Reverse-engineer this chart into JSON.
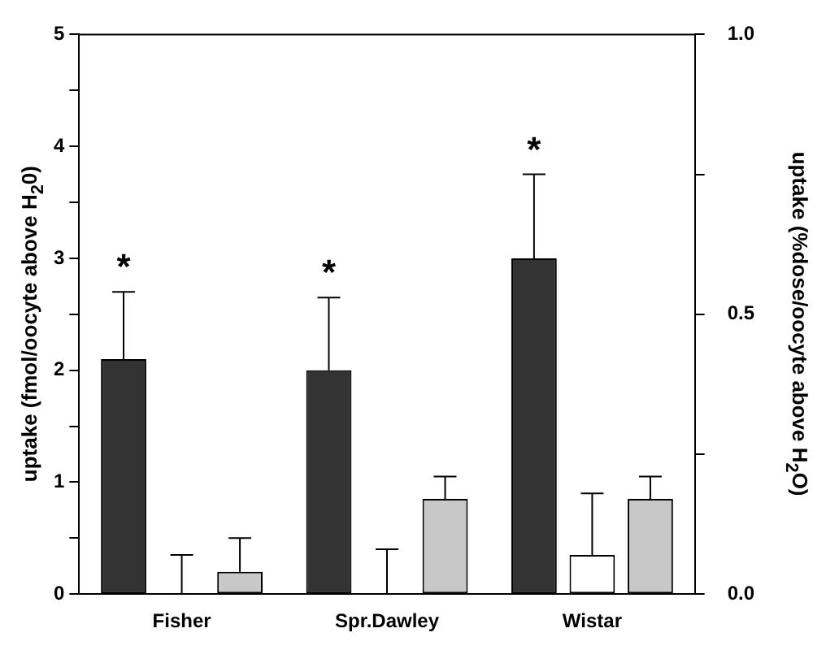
{
  "chart_data": {
    "type": "bar",
    "categories": [
      "Fisher",
      "Spr.Dawley",
      "Wistar"
    ],
    "series": [
      {
        "color": "#333333",
        "values": [
          2.1,
          2.0,
          3.0
        ],
        "errors": [
          [
            2.1,
            2.7
          ],
          [
            2.0,
            2.65
          ],
          [
            3.0,
            3.75
          ]
        ]
      },
      {
        "color": "#ffffff",
        "values": [
          0,
          0,
          0.35
        ],
        "errors": [
          [
            0,
            0.35
          ],
          [
            0,
            0.4
          ],
          [
            0.35,
            0.9
          ]
        ]
      },
      {
        "color": "#c8c8c8",
        "values": [
          0.2,
          0.85,
          0.85
        ],
        "errors": [
          [
            0.2,
            0.5
          ],
          [
            0.85,
            1.05
          ],
          [
            0.85,
            1.05
          ]
        ]
      }
    ],
    "ylabel": "uptake (fmol/oocyte above H$_{2}$0)",
    "y2label": "uptake (%dose/oocyte above H$_{2}$O)",
    "ylim": [
      0,
      5
    ],
    "yticks": [
      0,
      {
        "value": 0.5,
        "label": null
      },
      1,
      {
        "value": 1.5,
        "label": null
      },
      2,
      {
        "value": 2.5,
        "label": null
      },
      3,
      {
        "value": 3.5,
        "label": null
      },
      4,
      {
        "value": 4.5,
        "label": null
      },
      5
    ],
    "y2lim": [
      0,
      1
    ],
    "y2ticks": [
      {
        "value": 0,
        "label": "0.0"
      },
      {
        "value": 0.25,
        "label": null
      },
      0.5,
      {
        "value": 0.75,
        "label": null
      },
      {
        "value": 1,
        "label": "1.0"
      }
    ],
    "annotations": [
      "*",
      "*",
      "*"
    ],
    "grid": false,
    "legend": false
  }
}
